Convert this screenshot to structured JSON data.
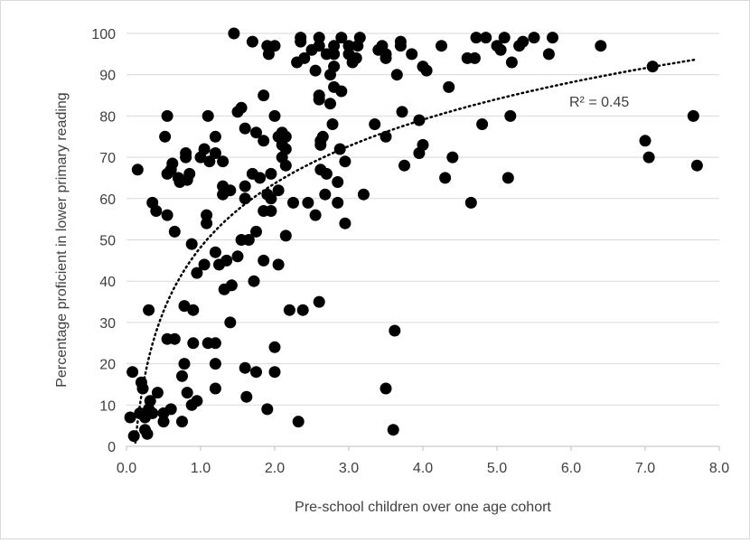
{
  "chart_data": {
    "type": "scatter",
    "title": "",
    "xlabel": "Pre-school children over one age cohort",
    "ylabel": "Percentage proficient in lower primary reading",
    "xlim": [
      0,
      8
    ],
    "ylim": [
      0,
      100
    ],
    "x_ticks": [
      "0.0",
      "1.0",
      "2.0",
      "3.0",
      "4.0",
      "5.0",
      "6.0",
      "7.0",
      "8.0"
    ],
    "y_ticks": [
      "0",
      "10",
      "20",
      "30",
      "40",
      "50",
      "60",
      "70",
      "80",
      "90",
      "100"
    ],
    "grid": "horizontal",
    "marker_color": "#000000",
    "trendline": {
      "type": "logarithmic",
      "style": "dotted",
      "label": "R² = 0.45",
      "a": 48.2,
      "b": 22.3
    },
    "points": [
      [
        0.05,
        7
      ],
      [
        0.08,
        18
      ],
      [
        0.1,
        2.5
      ],
      [
        0.15,
        67
      ],
      [
        0.18,
        8
      ],
      [
        0.2,
        15.5
      ],
      [
        0.22,
        14
      ],
      [
        0.25,
        4
      ],
      [
        0.25,
        7
      ],
      [
        0.28,
        3
      ],
      [
        0.3,
        33
      ],
      [
        0.3,
        9
      ],
      [
        0.32,
        11
      ],
      [
        0.35,
        8
      ],
      [
        0.35,
        59
      ],
      [
        0.4,
        57
      ],
      [
        0.42,
        13
      ],
      [
        0.5,
        6
      ],
      [
        0.5,
        8
      ],
      [
        0.52,
        75
      ],
      [
        0.55,
        80
      ],
      [
        0.55,
        66
      ],
      [
        0.55,
        56
      ],
      [
        0.55,
        26
      ],
      [
        0.6,
        9
      ],
      [
        0.6,
        67
      ],
      [
        0.62,
        68.5
      ],
      [
        0.65,
        52
      ],
      [
        0.65,
        26
      ],
      [
        0.7,
        65
      ],
      [
        0.72,
        64
      ],
      [
        0.75,
        6
      ],
      [
        0.75,
        17
      ],
      [
        0.78,
        34
      ],
      [
        0.78,
        20
      ],
      [
        0.8,
        70
      ],
      [
        0.8,
        71
      ],
      [
        0.82,
        64.5
      ],
      [
        0.82,
        13
      ],
      [
        0.85,
        66
      ],
      [
        0.88,
        10
      ],
      [
        0.88,
        49
      ],
      [
        0.9,
        33
      ],
      [
        0.9,
        25
      ],
      [
        0.95,
        42
      ],
      [
        0.95,
        11
      ],
      [
        1.0,
        70
      ],
      [
        1.05,
        44
      ],
      [
        1.05,
        72
      ],
      [
        1.08,
        56
      ],
      [
        1.08,
        54
      ],
      [
        1.1,
        80
      ],
      [
        1.1,
        25
      ],
      [
        1.12,
        69
      ],
      [
        1.2,
        71
      ],
      [
        1.2,
        75
      ],
      [
        1.2,
        47
      ],
      [
        1.2,
        20
      ],
      [
        1.2,
        14
      ],
      [
        1.2,
        25
      ],
      [
        1.25,
        44
      ],
      [
        1.3,
        69
      ],
      [
        1.3,
        63
      ],
      [
        1.3,
        61
      ],
      [
        1.32,
        38
      ],
      [
        1.35,
        45
      ],
      [
        1.4,
        30
      ],
      [
        1.4,
        62
      ],
      [
        1.42,
        39
      ],
      [
        1.45,
        100
      ],
      [
        1.5,
        46
      ],
      [
        1.5,
        81
      ],
      [
        1.55,
        82
      ],
      [
        1.55,
        50
      ],
      [
        1.6,
        77
      ],
      [
        1.6,
        63
      ],
      [
        1.6,
        60
      ],
      [
        1.6,
        19
      ],
      [
        1.62,
        12
      ],
      [
        1.65,
        50
      ],
      [
        1.7,
        98
      ],
      [
        1.7,
        66
      ],
      [
        1.72,
        40
      ],
      [
        1.75,
        18
      ],
      [
        1.75,
        76
      ],
      [
        1.75,
        52
      ],
      [
        1.8,
        65
      ],
      [
        1.85,
        85
      ],
      [
        1.85,
        57
      ],
      [
        1.85,
        74
      ],
      [
        1.85,
        45
      ],
      [
        1.9,
        9
      ],
      [
        1.9,
        61
      ],
      [
        1.9,
        97
      ],
      [
        1.92,
        95
      ],
      [
        1.95,
        60
      ],
      [
        1.95,
        66
      ],
      [
        1.95,
        57
      ],
      [
        2.0,
        80
      ],
      [
        2.0,
        97
      ],
      [
        2.0,
        24
      ],
      [
        2.0,
        18
      ],
      [
        2.05,
        44
      ],
      [
        2.05,
        62
      ],
      [
        2.05,
        75
      ],
      [
        2.1,
        76
      ],
      [
        2.1,
        70
      ],
      [
        2.1,
        73
      ],
      [
        2.15,
        51
      ],
      [
        2.15,
        68
      ],
      [
        2.15,
        72
      ],
      [
        2.15,
        75
      ],
      [
        2.2,
        33
      ],
      [
        2.25,
        59
      ],
      [
        2.3,
        93
      ],
      [
        2.32,
        6
      ],
      [
        2.35,
        98
      ],
      [
        2.35,
        99
      ],
      [
        2.38,
        33
      ],
      [
        2.4,
        94
      ],
      [
        2.45,
        59
      ],
      [
        2.5,
        96
      ],
      [
        2.55,
        56
      ],
      [
        2.55,
        91
      ],
      [
        2.6,
        99
      ],
      [
        2.6,
        97
      ],
      [
        2.6,
        85
      ],
      [
        2.6,
        84
      ],
      [
        2.6,
        35
      ],
      [
        2.62,
        74
      ],
      [
        2.62,
        73
      ],
      [
        2.62,
        67
      ],
      [
        2.65,
        75
      ],
      [
        2.68,
        61
      ],
      [
        2.7,
        95
      ],
      [
        2.7,
        66
      ],
      [
        2.75,
        83
      ],
      [
        2.75,
        90
      ],
      [
        2.78,
        78
      ],
      [
        2.8,
        97
      ],
      [
        2.8,
        95
      ],
      [
        2.8,
        92
      ],
      [
        2.8,
        87
      ],
      [
        2.85,
        59
      ],
      [
        2.85,
        64
      ],
      [
        2.88,
        72
      ],
      [
        2.9,
        99
      ],
      [
        2.9,
        86
      ],
      [
        2.95,
        69
      ],
      [
        2.95,
        54
      ],
      [
        3.0,
        97
      ],
      [
        3.0,
        95
      ],
      [
        3.05,
        93
      ],
      [
        3.1,
        94
      ],
      [
        3.12,
        97
      ],
      [
        3.15,
        99
      ],
      [
        3.2,
        61
      ],
      [
        3.35,
        78
      ],
      [
        3.4,
        96
      ],
      [
        3.45,
        97
      ],
      [
        3.5,
        14
      ],
      [
        3.5,
        75
      ],
      [
        3.5,
        94
      ],
      [
        3.5,
        95
      ],
      [
        3.6,
        4
      ],
      [
        3.62,
        28
      ],
      [
        3.65,
        90
      ],
      [
        3.7,
        97
      ],
      [
        3.7,
        98
      ],
      [
        3.72,
        81
      ],
      [
        3.75,
        68
      ],
      [
        3.85,
        95
      ],
      [
        3.95,
        71
      ],
      [
        3.95,
        79
      ],
      [
        4.0,
        92
      ],
      [
        4.0,
        73
      ],
      [
        4.05,
        91
      ],
      [
        4.25,
        97
      ],
      [
        4.3,
        65
      ],
      [
        4.35,
        87
      ],
      [
        4.4,
        70
      ],
      [
        4.6,
        94
      ],
      [
        4.65,
        59
      ],
      [
        4.7,
        94
      ],
      [
        4.72,
        99
      ],
      [
        4.8,
        78
      ],
      [
        4.85,
        99
      ],
      [
        5.0,
        97
      ],
      [
        5.05,
        96
      ],
      [
        5.1,
        99
      ],
      [
        5.15,
        65
      ],
      [
        5.18,
        80
      ],
      [
        5.2,
        93
      ],
      [
        5.3,
        97
      ],
      [
        5.35,
        98
      ],
      [
        5.5,
        99
      ],
      [
        5.7,
        95
      ],
      [
        5.75,
        99
      ],
      [
        6.4,
        97
      ],
      [
        7.0,
        74
      ],
      [
        7.05,
        70
      ],
      [
        7.1,
        92
      ],
      [
        7.65,
        80
      ],
      [
        7.7,
        68
      ]
    ]
  }
}
